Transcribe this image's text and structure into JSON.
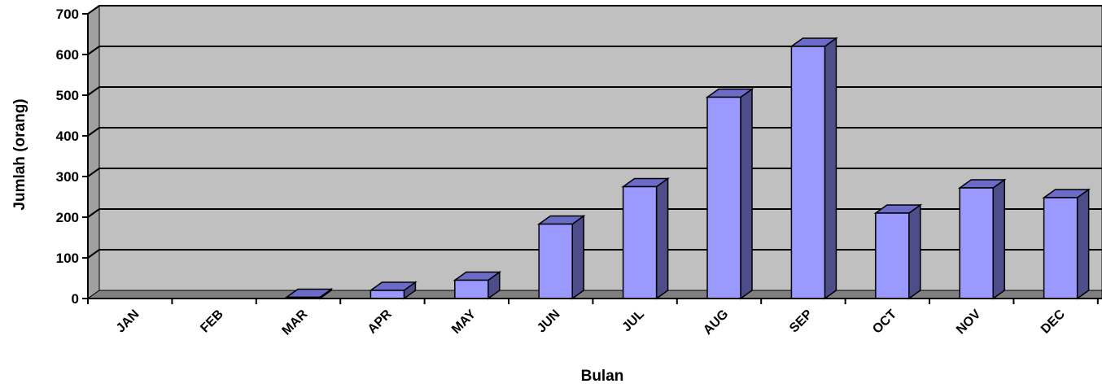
{
  "chart_data": {
    "type": "bar",
    "title": "",
    "xlabel": "Bulan",
    "ylabel": "Jumlah (orang)",
    "ylim": [
      0,
      700
    ],
    "yticks": [
      0,
      100,
      200,
      300,
      400,
      500,
      600,
      700
    ],
    "grid": true,
    "legend": "none",
    "categories": [
      "JAN",
      "FEB",
      "MAR",
      "APR",
      "MAY",
      "JUN",
      "JUL",
      "AUG",
      "SEP",
      "OCT",
      "NOV",
      "DEC"
    ],
    "values": [
      0,
      0,
      3,
      20,
      45,
      183,
      275,
      495,
      620,
      210,
      272,
      248
    ],
    "colors": {
      "bar_front": "#9999ff",
      "bar_side": "#4d4d8a",
      "bar_top": "#6b6bc8",
      "plot_bg": "#c0c0c0",
      "wall_side": "#a0a0a0",
      "floor": "#808080"
    }
  }
}
